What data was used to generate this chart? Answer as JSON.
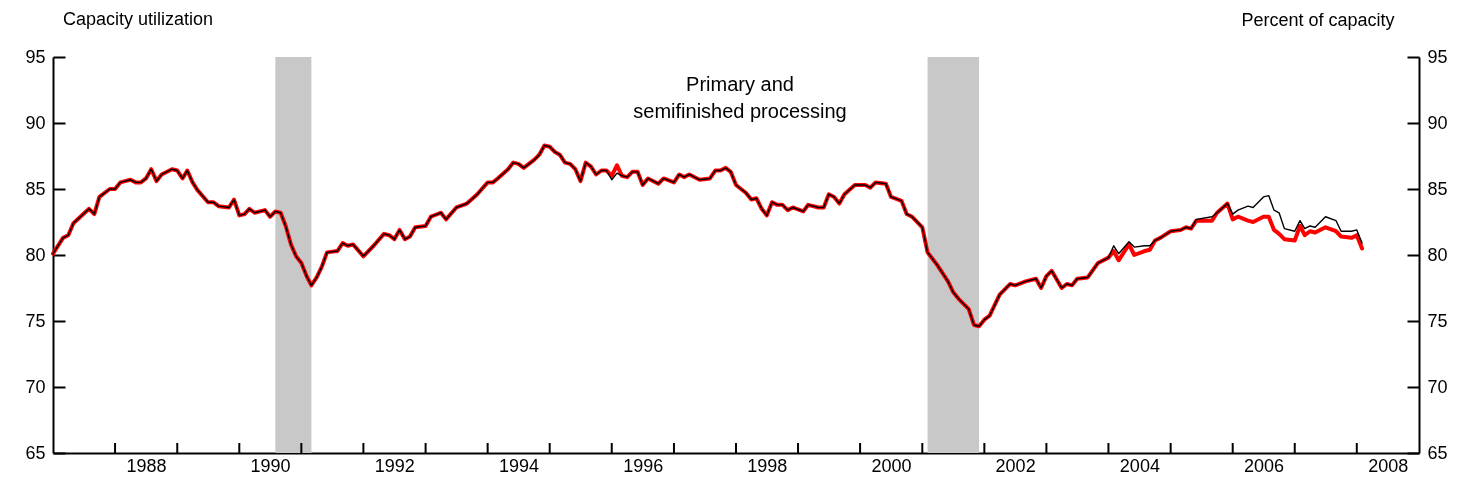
{
  "chart_data": {
    "type": "line",
    "title": "Capacity utilization",
    "y2label": "Percent of capacity",
    "annotations": [
      "Primary and semifinished processing"
    ],
    "x": [
      "1987-01",
      "1987-03",
      "1987-04",
      "1987-05",
      "1987-08",
      "1987-09",
      "1987-10",
      "1987-12",
      "1988-01",
      "1988-02",
      "1988-04",
      "1988-05",
      "1988-06",
      "1988-07",
      "1988-08",
      "1988-09",
      "1988-10",
      "1988-12",
      "1989-01",
      "1989-02",
      "1989-03",
      "1989-04",
      "1989-05",
      "1989-07",
      "1989-08",
      "1989-09",
      "1989-11",
      "1989-12",
      "1990-01",
      "1990-02",
      "1990-03",
      "1990-04",
      "1990-06",
      "1990-07",
      "1990-08",
      "1990-09",
      "1990-10",
      "1990-11",
      "1990-12",
      "1991-01",
      "1991-02",
      "1991-03",
      "1991-04",
      "1991-05",
      "1991-06",
      "1991-08",
      "1991-09",
      "1991-10",
      "1991-11",
      "1992-01",
      "1992-03",
      "1992-05",
      "1992-06",
      "1992-07",
      "1992-08",
      "1992-09",
      "1992-10",
      "1992-11",
      "1993-01",
      "1993-02",
      "1993-04",
      "1993-05",
      "1993-07",
      "1993-09",
      "1993-11",
      "1994-01",
      "1994-02",
      "1994-03",
      "1994-05",
      "1994-06",
      "1994-07",
      "1994-08",
      "1994-10",
      "1994-11",
      "1994-12",
      "1995-01",
      "1995-02",
      "1995-03",
      "1995-04",
      "1995-05",
      "1995-06",
      "1995-07",
      "1995-08",
      "1995-09",
      "1995-10",
      "1995-11",
      "1995-12",
      "1996-01",
      "1996-02",
      "1996-03",
      "1996-04",
      "1996-05",
      "1996-06",
      "1996-07",
      "1996-08",
      "1996-10",
      "1996-11",
      "1997-01",
      "1997-02",
      "1997-03",
      "1997-04",
      "1997-06",
      "1997-08",
      "1997-09",
      "1997-10",
      "1997-11",
      "1997-12",
      "1998-01",
      "1998-03",
      "1998-04",
      "1998-05",
      "1998-06",
      "1998-07",
      "1998-08",
      "1998-09",
      "1998-10",
      "1998-11",
      "1998-12",
      "1999-02",
      "1999-03",
      "1999-05",
      "1999-06",
      "1999-07",
      "1999-08",
      "1999-09",
      "1999-10",
      "1999-12",
      "2000-02",
      "2000-03",
      "2000-04",
      "2000-06",
      "2000-07",
      "2000-09",
      "2000-10",
      "2000-11",
      "2001-01",
      "2001-02",
      "2001-04",
      "2001-06",
      "2001-07",
      "2001-08",
      "2001-10",
      "2001-11",
      "2001-12",
      "2002-01",
      "2002-02",
      "2002-04",
      "2002-06",
      "2002-07",
      "2002-09",
      "2002-11",
      "2002-12",
      "2003-01",
      "2003-02",
      "2003-04",
      "2003-05",
      "2003-06",
      "2003-07",
      "2003-09",
      "2003-11",
      "2004-01",
      "2004-02",
      "2004-03",
      "2004-05",
      "2004-06",
      "2004-08",
      "2004-09",
      "2004-10",
      "2004-11",
      "2005-01",
      "2005-03",
      "2005-04",
      "2005-05",
      "2005-06",
      "2005-09",
      "2005-10",
      "2005-12",
      "2006-01",
      "2006-02",
      "2006-04",
      "2006-05",
      "2006-07",
      "2006-08",
      "2006-09",
      "2006-10",
      "2006-11",
      "2007-01",
      "2007-02",
      "2007-03",
      "2007-04",
      "2007-05",
      "2007-07",
      "2007-09",
      "2007-10",
      "2007-12",
      "2008-01",
      "2008-02"
    ],
    "series": [
      {
        "color": "#ff0000",
        "values": [
          80.1,
          81.3,
          81.5,
          82.4,
          83.5,
          83.1,
          84.4,
          85.0,
          85.0,
          85.5,
          85.7,
          85.5,
          85.5,
          85.8,
          86.5,
          85.6,
          86.1,
          86.5,
          86.4,
          85.8,
          86.4,
          85.5,
          84.9,
          84.0,
          84.0,
          83.7,
          83.6,
          84.2,
          83.0,
          83.1,
          83.5,
          83.2,
          83.4,
          82.9,
          83.3,
          83.2,
          82.2,
          80.8,
          79.9,
          79.4,
          78.4,
          77.7,
          78.3,
          79.1,
          80.2,
          80.3,
          80.9,
          80.7,
          80.8,
          79.9,
          80.7,
          81.6,
          81.5,
          81.2,
          81.9,
          81.2,
          81.4,
          82.1,
          82.2,
          82.9,
          83.2,
          82.7,
          83.6,
          83.9,
          84.6,
          85.5,
          85.5,
          85.8,
          86.5,
          87.0,
          86.9,
          86.6,
          87.2,
          87.6,
          88.3,
          88.2,
          87.8,
          87.6,
          87.0,
          86.9,
          86.5,
          85.6,
          87.0,
          86.7,
          86.1,
          86.4,
          86.4,
          86.0,
          86.8,
          86.0,
          85.9,
          86.3,
          86.3,
          85.3,
          85.8,
          85.4,
          85.8,
          85.5,
          86.1,
          85.9,
          86.1,
          85.7,
          85.8,
          86.4,
          86.4,
          86.6,
          86.3,
          85.3,
          84.7,
          84.2,
          84.3,
          83.5,
          83.0,
          84.0,
          83.8,
          83.8,
          83.4,
          83.6,
          83.3,
          83.8,
          83.6,
          83.6,
          84.6,
          84.4,
          83.9,
          84.6,
          85.3,
          85.3,
          85.1,
          85.5,
          85.4,
          84.4,
          84.1,
          83.1,
          82.9,
          82.1,
          80.2,
          79.2,
          78.0,
          77.2,
          76.7,
          75.9,
          74.7,
          74.6,
          75.1,
          75.4,
          77.0,
          77.8,
          77.7,
          78.0,
          78.2,
          77.5,
          78.4,
          78.8,
          77.5,
          77.8,
          77.7,
          78.2,
          78.3,
          79.4,
          79.8,
          80.3,
          79.6,
          80.8,
          80.0,
          80.3,
          80.4,
          81.1,
          81.3,
          81.8,
          81.9,
          82.1,
          82.0,
          82.6,
          82.6,
          83.2,
          83.9,
          82.7,
          82.9,
          82.6,
          82.5,
          82.9,
          82.9,
          81.9,
          81.6,
          81.2,
          81.1,
          82.2,
          81.5,
          81.8,
          81.7,
          82.1,
          81.8,
          81.4,
          81.3,
          81.5,
          80.5
        ]
      },
      {
        "color": "#000000",
        "values": [
          80.1,
          81.3,
          81.5,
          82.4,
          83.5,
          83.1,
          84.4,
          85.0,
          85.0,
          85.5,
          85.7,
          85.5,
          85.5,
          85.8,
          86.5,
          85.6,
          86.1,
          86.5,
          86.4,
          85.8,
          86.4,
          85.5,
          84.9,
          84.0,
          84.0,
          83.7,
          83.6,
          84.2,
          83.0,
          83.1,
          83.5,
          83.2,
          83.4,
          82.9,
          83.3,
          83.2,
          82.2,
          80.8,
          79.9,
          79.4,
          78.4,
          77.7,
          78.3,
          79.1,
          80.2,
          80.3,
          80.9,
          80.7,
          80.8,
          79.9,
          80.7,
          81.6,
          81.5,
          81.2,
          81.9,
          81.2,
          81.4,
          82.1,
          82.2,
          82.9,
          83.2,
          82.7,
          83.6,
          83.9,
          84.6,
          85.5,
          85.5,
          85.8,
          86.5,
          87.0,
          86.9,
          86.6,
          87.2,
          87.6,
          88.3,
          88.2,
          87.8,
          87.6,
          87.0,
          86.9,
          86.5,
          85.6,
          87.0,
          86.7,
          86.1,
          86.4,
          86.4,
          85.7,
          86.2,
          86.0,
          85.9,
          86.3,
          86.3,
          85.3,
          85.8,
          85.4,
          85.8,
          85.5,
          86.1,
          85.9,
          86.1,
          85.7,
          85.8,
          86.4,
          86.4,
          86.6,
          86.3,
          85.3,
          84.7,
          84.2,
          84.3,
          83.5,
          83.0,
          84.0,
          83.8,
          83.8,
          83.4,
          83.6,
          83.3,
          83.8,
          83.6,
          83.6,
          84.6,
          84.4,
          83.9,
          84.6,
          85.3,
          85.3,
          85.1,
          85.5,
          85.4,
          84.4,
          84.1,
          83.1,
          82.9,
          82.1,
          80.2,
          79.2,
          78.0,
          77.2,
          76.7,
          75.9,
          74.7,
          74.6,
          75.1,
          75.4,
          77.0,
          77.8,
          77.7,
          78.0,
          78.2,
          77.5,
          78.4,
          78.8,
          77.5,
          77.8,
          77.7,
          78.2,
          78.3,
          79.4,
          79.8,
          80.7,
          80.1,
          81.0,
          80.6,
          80.7,
          80.7,
          81.1,
          81.3,
          81.8,
          81.9,
          82.1,
          82.0,
          82.7,
          82.9,
          83.2,
          83.9,
          83.1,
          83.4,
          83.7,
          83.6,
          84.4,
          84.5,
          83.4,
          83.2,
          82.0,
          81.8,
          82.6,
          82.0,
          82.2,
          82.1,
          82.9,
          82.6,
          81.8,
          81.8,
          81.9,
          80.9
        ]
      }
    ],
    "xlim": [
      "1987-01",
      "2009-01"
    ],
    "xticks": [
      {
        "value": "1988-01",
        "label": null
      },
      {
        "value": "1988-07",
        "label": "1988"
      },
      {
        "value": "1989-01",
        "label": null
      },
      {
        "value": "1990-01",
        "label": null
      },
      {
        "value": "1990-07",
        "label": "1990"
      },
      {
        "value": "1991-01",
        "label": null
      },
      {
        "value": "1992-01",
        "label": null
      },
      {
        "value": "1992-07",
        "label": "1992"
      },
      {
        "value": "1993-01",
        "label": null
      },
      {
        "value": "1994-01",
        "label": null
      },
      {
        "value": "1994-07",
        "label": "1994"
      },
      {
        "value": "1995-01",
        "label": null
      },
      {
        "value": "1996-01",
        "label": null
      },
      {
        "value": "1996-07",
        "label": "1996"
      },
      {
        "value": "1997-01",
        "label": null
      },
      {
        "value": "1998-01",
        "label": null
      },
      {
        "value": "1998-07",
        "label": "1998"
      },
      {
        "value": "1999-01",
        "label": null
      },
      {
        "value": "2000-01",
        "label": null
      },
      {
        "value": "2000-07",
        "label": "2000"
      },
      {
        "value": "2001-01",
        "label": null
      },
      {
        "value": "2002-01",
        "label": null
      },
      {
        "value": "2002-07",
        "label": "2002"
      },
      {
        "value": "2003-01",
        "label": null
      },
      {
        "value": "2004-01",
        "label": null
      },
      {
        "value": "2004-07",
        "label": "2004"
      },
      {
        "value": "2005-01",
        "label": null
      },
      {
        "value": "2006-01",
        "label": null
      },
      {
        "value": "2006-07",
        "label": "2006"
      },
      {
        "value": "2007-01",
        "label": null
      },
      {
        "value": "2008-01",
        "label": null
      },
      {
        "value": "2008-07",
        "label": "2008"
      }
    ],
    "ylim": [
      65,
      95
    ],
    "yticks": [
      65,
      70,
      75,
      80,
      85,
      90,
      95
    ],
    "y2lim": [
      65,
      95
    ],
    "y2ticks": [
      65,
      70,
      75,
      80,
      85,
      90,
      95
    ],
    "bands": [
      {
        "axis": "x",
        "from": "1990-08",
        "to": "1991-03",
        "color": "#c8c8c8"
      },
      {
        "axis": "x",
        "from": "2001-02",
        "to": "2001-12",
        "color": "#c8c8c8"
      }
    ]
  }
}
